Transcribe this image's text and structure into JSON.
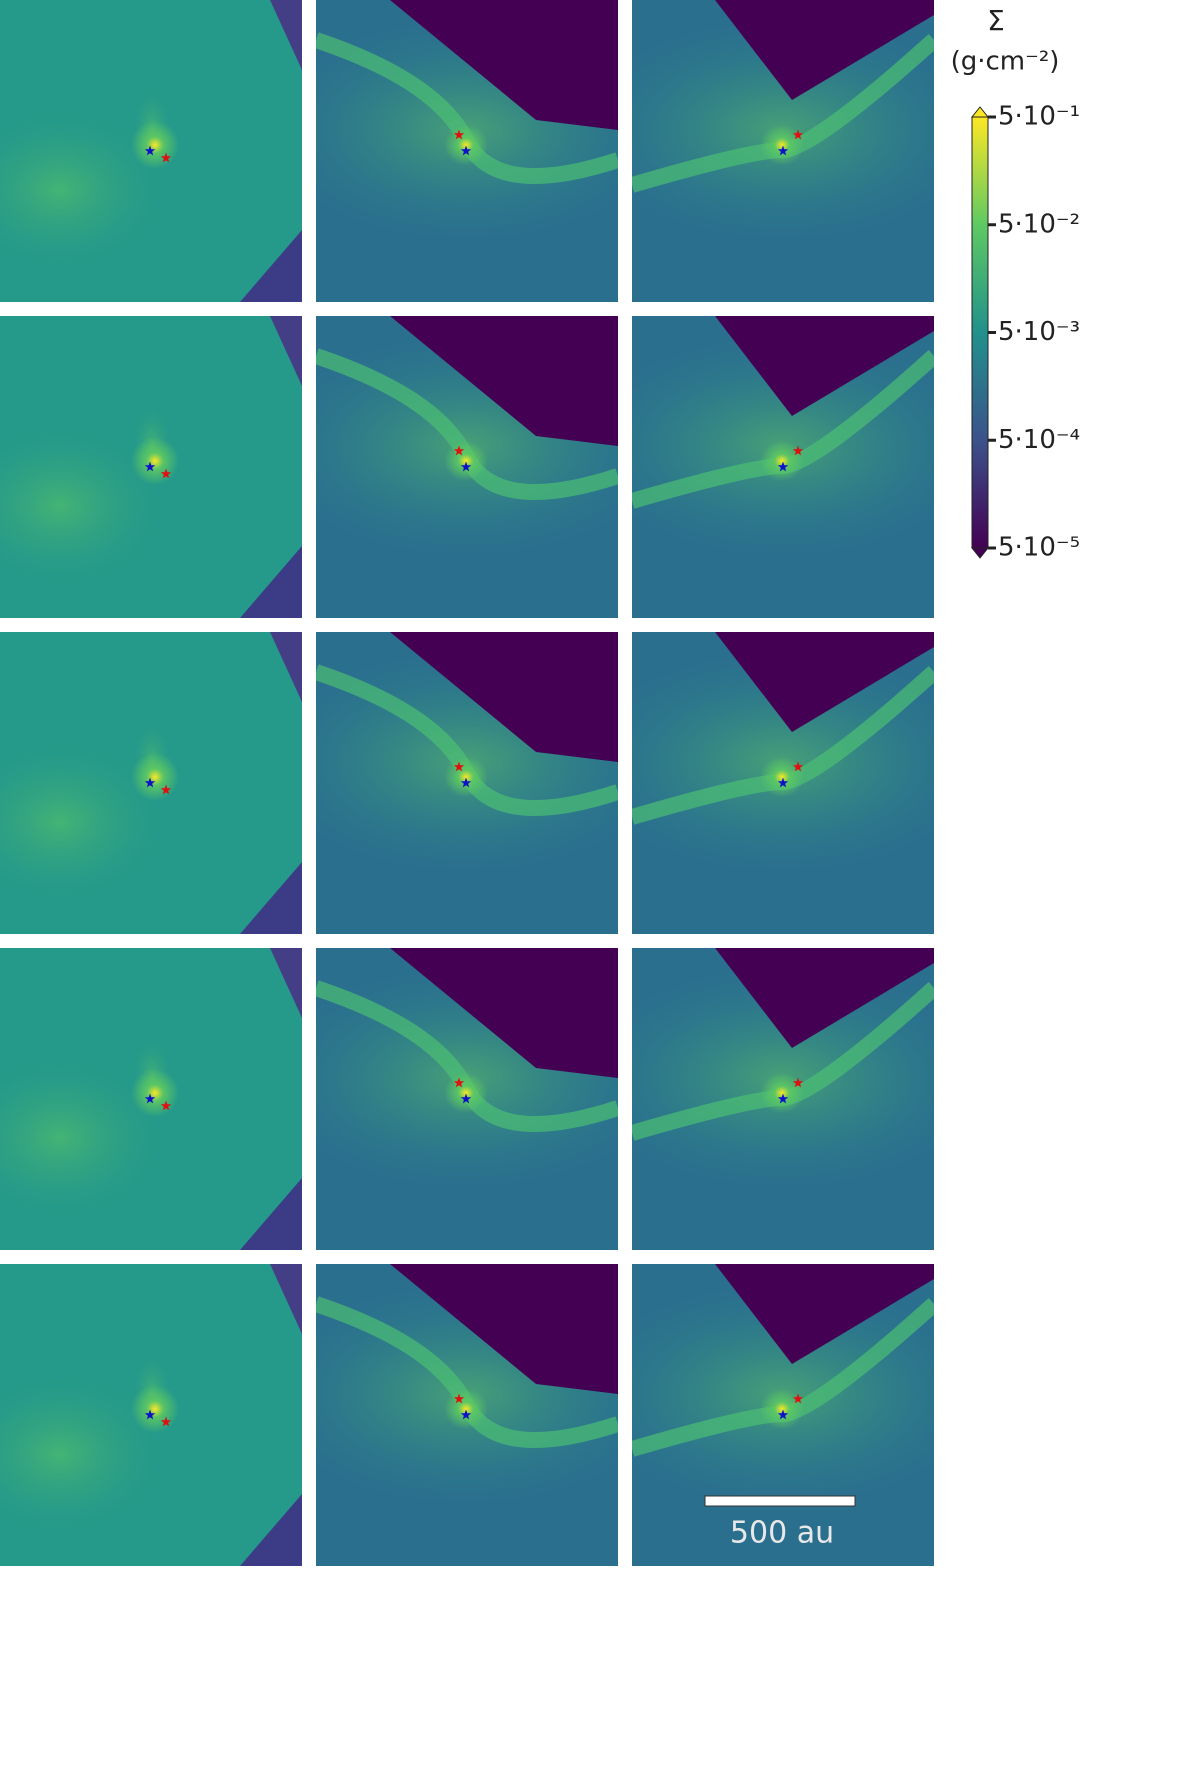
{
  "chart_data": {
    "type": "image-grid",
    "colorbar": {
      "symbol": "Σ",
      "unit": "(g·cm⁻²)",
      "log": true,
      "lim": [
        5e-05,
        0.5
      ],
      "ticks": [
        {
          "value": 0.5,
          "label": "5·10⁻¹"
        },
        {
          "value": 0.05,
          "label": "5·10⁻²"
        },
        {
          "value": 0.005,
          "label": "5·10⁻³"
        },
        {
          "value": 0.0005,
          "label": "5·10⁻⁴"
        },
        {
          "value": 5e-05,
          "label": "5·10⁻⁵"
        }
      ],
      "colormap": [
        "#440154",
        "#3b528b",
        "#21918c",
        "#5ec962",
        "#fde725"
      ]
    },
    "scalebar": {
      "label": "500 au"
    }
  }
}
